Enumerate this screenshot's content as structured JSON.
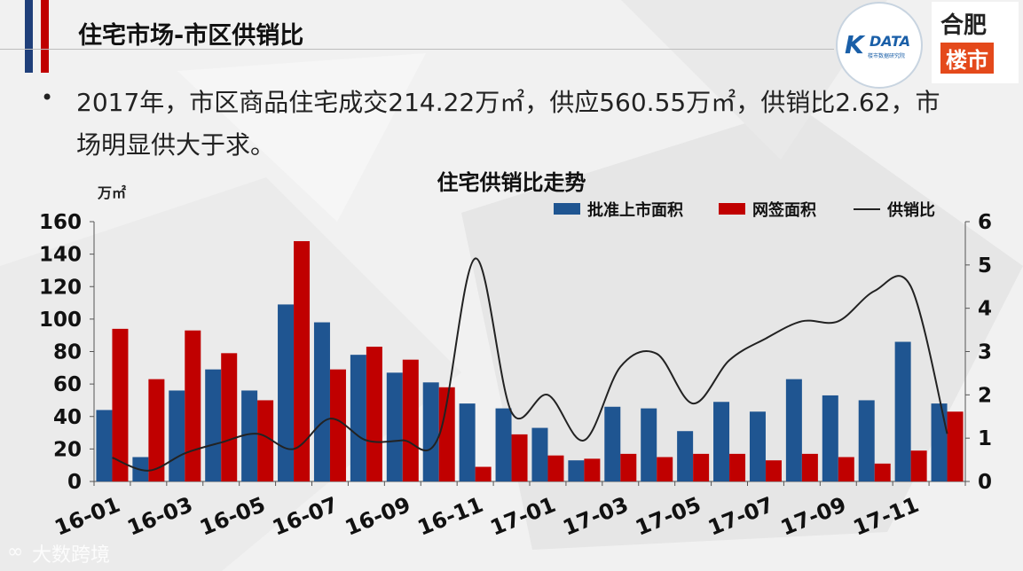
{
  "header": {
    "title": "住宅市场-市区供销比",
    "logo_k": "K",
    "logo_data": "DATA",
    "logo_sub": "楼市数据研究院",
    "logo_hf_top": "合肥",
    "logo_hf_bottom": "楼市"
  },
  "bullet": {
    "text": "2017年，市区商品住宅成交214.22万㎡，供应560.55万㎡，供销比2.62，市场明显供大于求。"
  },
  "watermark": {
    "icon": "infinity-icon",
    "text": "大数跨境"
  },
  "colors": {
    "approved": "#1f5591",
    "signed": "#c00000",
    "ratio": "#222222",
    "accent_navy": "#1f3f7a",
    "accent_red": "#c00000"
  },
  "chart_data": {
    "type": "bar",
    "title": "住宅供销比走势",
    "unit_left": "万㎡",
    "ylim_left": [
      0,
      160
    ],
    "yticks_left": [
      "0",
      "20",
      "40",
      "60",
      "80",
      "100",
      "120",
      "140",
      "160"
    ],
    "ylim_right": [
      0,
      6
    ],
    "yticks_right": [
      "0",
      "1",
      "2",
      "3",
      "4",
      "5",
      "6"
    ],
    "categories": [
      "16-01",
      "16-02",
      "16-03",
      "16-04",
      "16-05",
      "16-06",
      "16-07",
      "16-08",
      "16-09",
      "16-10",
      "16-11",
      "16-12",
      "17-01",
      "17-02",
      "17-03",
      "17-04",
      "17-05",
      "17-06",
      "17-07",
      "17-08",
      "17-09",
      "17-10",
      "17-11",
      "17-12"
    ],
    "xtick_labels": [
      "16-01",
      "16-03",
      "16-05",
      "16-07",
      "16-09",
      "16-11",
      "17-01",
      "17-03",
      "17-05",
      "17-07",
      "17-09",
      "17-11"
    ],
    "legend_position": "top-right",
    "series": [
      {
        "name": "批准上市面积",
        "kind": "bar",
        "axis": "left",
        "values": [
          44,
          15,
          56,
          69,
          56,
          109,
          98,
          78,
          67,
          61,
          48,
          45,
          33,
          13,
          46,
          45,
          31,
          49,
          43,
          63,
          53,
          50,
          86,
          48
        ]
      },
      {
        "name": "网签面积",
        "kind": "bar",
        "axis": "left",
        "values": [
          94,
          63,
          93,
          79,
          50,
          148,
          69,
          83,
          75,
          58,
          9,
          29,
          16,
          14,
          17,
          15,
          17,
          17,
          13,
          17,
          15,
          11,
          19,
          43
        ]
      },
      {
        "name": "供销比",
        "kind": "line",
        "axis": "right",
        "values": [
          0.55,
          0.25,
          0.65,
          0.9,
          1.1,
          0.75,
          1.45,
          0.95,
          0.95,
          1.05,
          5.15,
          1.6,
          2.0,
          0.95,
          2.65,
          2.95,
          1.8,
          2.8,
          3.3,
          3.7,
          3.7,
          4.4,
          4.5,
          1.1
        ]
      }
    ]
  }
}
